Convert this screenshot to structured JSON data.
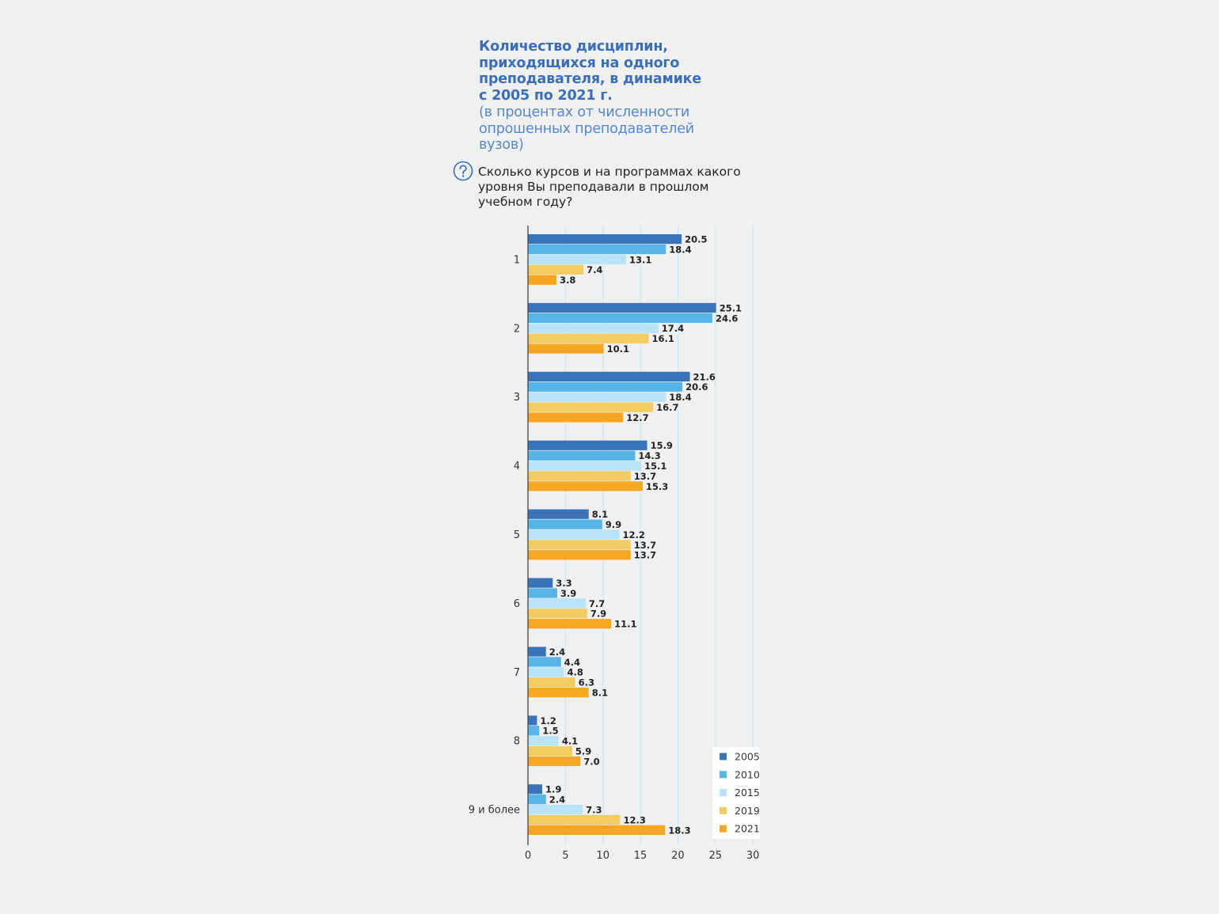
{
  "title": {
    "lines": [
      "Количество дисциплин,",
      "приходящихся на одного",
      "преподавателя, в динамике",
      "с 2005 по 2021 г."
    ],
    "subtitle_lines": [
      "(в процентах от численности",
      "опрошенных преподавателей",
      "вузов)"
    ]
  },
  "question": {
    "icon": "question-circle-icon",
    "lines": [
      "Сколько курсов и на программах какого",
      "уровня Вы преподавали в прошлом",
      "учебном году?"
    ]
  },
  "colors": {
    "2005": "#3a73b8",
    "2010": "#56b4e6",
    "2015": "#b9e4f7",
    "2019": "#f2cb62",
    "2021": "#f5a623",
    "title": "#3a6fb7",
    "grid": "#cfe6f5",
    "axis": "#444444"
  },
  "chart_data": {
    "type": "bar",
    "orientation": "horizontal",
    "categories": [
      "1",
      "2",
      "3",
      "4",
      "5",
      "6",
      "7",
      "8",
      "9 и более"
    ],
    "series": [
      {
        "name": "2005",
        "values": [
          20.5,
          25.1,
          21.6,
          15.9,
          8.1,
          3.3,
          2.4,
          1.2,
          1.9
        ]
      },
      {
        "name": "2010",
        "values": [
          18.4,
          24.6,
          20.6,
          14.3,
          9.9,
          3.9,
          4.4,
          1.5,
          2.4
        ]
      },
      {
        "name": "2015",
        "values": [
          13.1,
          17.4,
          18.4,
          15.1,
          12.2,
          7.7,
          4.8,
          4.1,
          7.3
        ]
      },
      {
        "name": "2019",
        "values": [
          7.4,
          16.1,
          16.7,
          13.7,
          13.7,
          7.9,
          6.3,
          5.9,
          12.3
        ]
      },
      {
        "name": "2021",
        "values": [
          3.8,
          10.1,
          12.7,
          15.3,
          13.7,
          11.1,
          8.1,
          7.0,
          18.3
        ]
      }
    ],
    "xlim": [
      0,
      30
    ],
    "xticks": [
      "0",
      "5",
      "10",
      "15",
      "20",
      "25",
      "30"
    ],
    "grid": true,
    "legend_position": "bottom-right"
  }
}
